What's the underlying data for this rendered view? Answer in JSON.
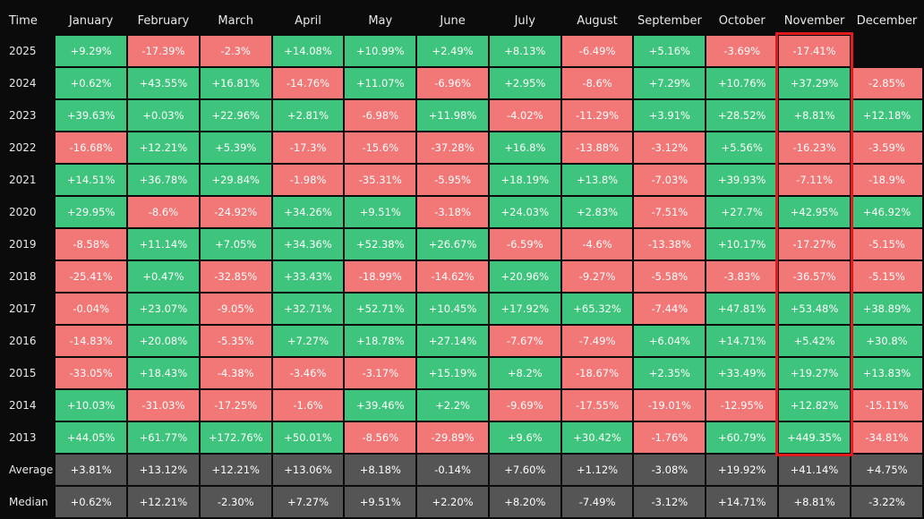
{
  "chart_data": {
    "type": "table",
    "title": "",
    "corner_label": "Time",
    "columns": [
      "January",
      "February",
      "March",
      "April",
      "May",
      "June",
      "July",
      "August",
      "September",
      "October",
      "November",
      "December"
    ],
    "highlighted_column": "November",
    "colors": {
      "positive": "#3ec47c",
      "negative": "#f27777",
      "stat": "#555555",
      "highlight": "#e11c1c"
    },
    "rows": [
      {
        "label": "2025",
        "values": [
          "+9.29%",
          "-17.39%",
          "-2.3%",
          "+14.08%",
          "+10.99%",
          "+2.49%",
          "+8.13%",
          "-6.49%",
          "+5.16%",
          "-3.69%",
          "-17.41%",
          ""
        ]
      },
      {
        "label": "2024",
        "values": [
          "+0.62%",
          "+43.55%",
          "+16.81%",
          "-14.76%",
          "+11.07%",
          "-6.96%",
          "+2.95%",
          "-8.6%",
          "+7.29%",
          "+10.76%",
          "+37.29%",
          "-2.85%"
        ]
      },
      {
        "label": "2023",
        "values": [
          "+39.63%",
          "+0.03%",
          "+22.96%",
          "+2.81%",
          "-6.98%",
          "+11.98%",
          "-4.02%",
          "-11.29%",
          "+3.91%",
          "+28.52%",
          "+8.81%",
          "+12.18%"
        ]
      },
      {
        "label": "2022",
        "values": [
          "-16.68%",
          "+12.21%",
          "+5.39%",
          "-17.3%",
          "-15.6%",
          "-37.28%",
          "+16.8%",
          "-13.88%",
          "-3.12%",
          "+5.56%",
          "-16.23%",
          "-3.59%"
        ]
      },
      {
        "label": "2021",
        "values": [
          "+14.51%",
          "+36.78%",
          "+29.84%",
          "-1.98%",
          "-35.31%",
          "-5.95%",
          "+18.19%",
          "+13.8%",
          "-7.03%",
          "+39.93%",
          "-7.11%",
          "-18.9%"
        ]
      },
      {
        "label": "2020",
        "values": [
          "+29.95%",
          "-8.6%",
          "-24.92%",
          "+34.26%",
          "+9.51%",
          "-3.18%",
          "+24.03%",
          "+2.83%",
          "-7.51%",
          "+27.7%",
          "+42.95%",
          "+46.92%"
        ]
      },
      {
        "label": "2019",
        "values": [
          "-8.58%",
          "+11.14%",
          "+7.05%",
          "+34.36%",
          "+52.38%",
          "+26.67%",
          "-6.59%",
          "-4.6%",
          "-13.38%",
          "+10.17%",
          "-17.27%",
          "-5.15%"
        ]
      },
      {
        "label": "2018",
        "values": [
          "-25.41%",
          "+0.47%",
          "-32.85%",
          "+33.43%",
          "-18.99%",
          "-14.62%",
          "+20.96%",
          "-9.27%",
          "-5.58%",
          "-3.83%",
          "-36.57%",
          "-5.15%"
        ]
      },
      {
        "label": "2017",
        "values": [
          "-0.04%",
          "+23.07%",
          "-9.05%",
          "+32.71%",
          "+52.71%",
          "+10.45%",
          "+17.92%",
          "+65.32%",
          "-7.44%",
          "+47.81%",
          "+53.48%",
          "+38.89%"
        ]
      },
      {
        "label": "2016",
        "values": [
          "-14.83%",
          "+20.08%",
          "-5.35%",
          "+7.27%",
          "+18.78%",
          "+27.14%",
          "-7.67%",
          "-7.49%",
          "+6.04%",
          "+14.71%",
          "+5.42%",
          "+30.8%"
        ]
      },
      {
        "label": "2015",
        "values": [
          "-33.05%",
          "+18.43%",
          "-4.38%",
          "-3.46%",
          "-3.17%",
          "+15.19%",
          "+8.2%",
          "-18.67%",
          "+2.35%",
          "+33.49%",
          "+19.27%",
          "+13.83%"
        ]
      },
      {
        "label": "2014",
        "values": [
          "+10.03%",
          "-31.03%",
          "-17.25%",
          "-1.6%",
          "+39.46%",
          "+2.2%",
          "-9.69%",
          "-17.55%",
          "-19.01%",
          "-12.95%",
          "+12.82%",
          "-15.11%"
        ]
      },
      {
        "label": "2013",
        "values": [
          "+44.05%",
          "+61.77%",
          "+172.76%",
          "+50.01%",
          "-8.56%",
          "-29.89%",
          "+9.6%",
          "+30.42%",
          "-1.76%",
          "+60.79%",
          "+449.35%",
          "-34.81%"
        ]
      }
    ],
    "summary_rows": [
      {
        "label": "Average",
        "values": [
          "+3.81%",
          "+13.12%",
          "+12.21%",
          "+13.06%",
          "+8.18%",
          "-0.14%",
          "+7.60%",
          "+1.12%",
          "-3.08%",
          "+19.92%",
          "+41.14%",
          "+4.75%"
        ]
      },
      {
        "label": "Median",
        "values": [
          "+0.62%",
          "+12.21%",
          "-2.30%",
          "+7.27%",
          "+9.51%",
          "+2.20%",
          "+8.20%",
          "-7.49%",
          "-3.12%",
          "+14.71%",
          "+8.81%",
          "-3.22%"
        ]
      }
    ]
  }
}
